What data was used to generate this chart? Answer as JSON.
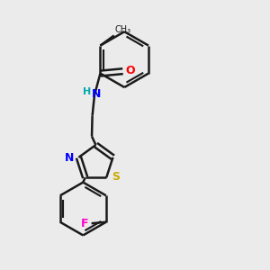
{
  "background_color": "#ebebeb",
  "bond_color": "#1a1a1a",
  "bond_width": 1.8,
  "atom_colors": {
    "C": "#1a1a1a",
    "N": "#0000ff",
    "O": "#ff0000",
    "S": "#ccaa00",
    "F": "#ff00cc",
    "H": "#00aaaa"
  },
  "figsize": [
    3.0,
    3.0
  ],
  "dpi": 100,
  "xlim": [
    0,
    10
  ],
  "ylim": [
    0,
    10
  ]
}
